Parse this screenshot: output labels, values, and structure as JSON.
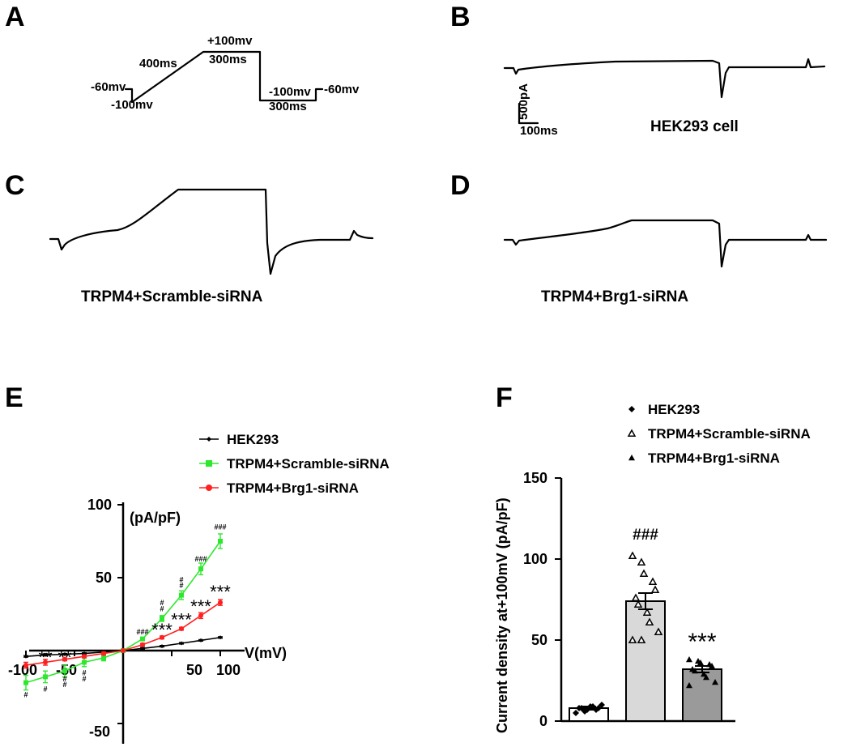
{
  "panels": {
    "A": {
      "letter": "A",
      "labels": [
        "-60mv",
        "-100mv",
        "400ms",
        "+100mv",
        "300ms",
        "-100mv",
        "300ms",
        "-60mv"
      ]
    },
    "B": {
      "letter": "B",
      "title": "HEK293 cell",
      "scale_y": "500pA",
      "scale_x": "100ms"
    },
    "C": {
      "letter": "C",
      "title": "TRPM4+Scramble-siRNA"
    },
    "D": {
      "letter": "D",
      "title": "TRPM4+Brg1-siRNA"
    },
    "E": {
      "letter": "E"
    },
    "F": {
      "letter": "F"
    }
  },
  "colors": {
    "hek293": "#000000",
    "scramble": "#2ee82e",
    "brg1": "#ff2020",
    "bar_hek": "#ffffff",
    "bar_scramble": "#d9d9d9",
    "bar_brg1": "#9a9a9a"
  },
  "chart_data": [
    {
      "panel": "E",
      "type": "line",
      "title": "",
      "xlabel": "V(mV)",
      "ylabel": "(pA/pF)",
      "xlim": [
        -100,
        100
      ],
      "ylim": [
        -50,
        100
      ],
      "x_ticks": [
        "-100",
        "-50",
        "50",
        "100"
      ],
      "y_ticks": [
        "-50",
        "50",
        "100"
      ],
      "legend_position": "top-right",
      "x": [
        -100,
        -80,
        -60,
        -40,
        -20,
        0,
        20,
        40,
        60,
        80,
        100
      ],
      "series": [
        {
          "name": "HEK293",
          "marker": "diamond",
          "values": [
            -4,
            -3,
            -2.5,
            -2,
            -1,
            0,
            1.5,
            3,
            5,
            7,
            9
          ],
          "errors": [
            0.5,
            0.5,
            0.5,
            0.5,
            0.5,
            0,
            0.5,
            0.5,
            0.5,
            0.5,
            0.5
          ]
        },
        {
          "name": "TRPM4+Scramble-siRNA",
          "marker": "square",
          "values": [
            -22,
            -18,
            -14,
            -8,
            -5,
            0,
            8,
            22,
            38,
            56,
            75
          ],
          "errors": [
            5,
            4,
            4,
            3,
            2,
            0,
            1,
            2,
            3,
            4,
            5
          ]
        },
        {
          "name": "TRPM4+Brg1-siRNA",
          "marker": "circle",
          "values": [
            -10,
            -8,
            -6,
            -4,
            -2,
            0,
            4,
            9,
            15,
            24,
            33
          ],
          "errors": [
            2,
            2,
            1,
            1,
            1,
            0,
            1,
            1,
            1,
            2,
            2
          ]
        }
      ],
      "annotations": [
        {
          "text": "#",
          "x": -100,
          "y": -32
        },
        {
          "text": "#",
          "x": -80,
          "y": -28
        },
        {
          "text": "#",
          "x": -60,
          "y": -25
        },
        {
          "text": "#",
          "x": -60,
          "y": -21
        },
        {
          "text": "#",
          "x": -40,
          "y": -21
        },
        {
          "text": "#",
          "x": -40,
          "y": -17
        },
        {
          "text": "**",
          "x": -80,
          "y": -9
        },
        {
          "text": "**",
          "x": -60,
          "y": -9
        },
        {
          "text": "###",
          "x": 20,
          "y": 11
        },
        {
          "text": "#",
          "x": 40,
          "y": 27
        },
        {
          "text": "#",
          "x": 40,
          "y": 31
        },
        {
          "text": "#",
          "x": 60,
          "y": 43
        },
        {
          "text": "#",
          "x": 60,
          "y": 47
        },
        {
          "text": "###",
          "x": 80,
          "y": 61
        },
        {
          "text": "###",
          "x": 100,
          "y": 83
        },
        {
          "text": "***",
          "x": 40,
          "y": 10
        },
        {
          "text": "***",
          "x": 60,
          "y": 17
        },
        {
          "text": "***",
          "x": 80,
          "y": 26
        },
        {
          "text": "***",
          "x": 100,
          "y": 36
        }
      ]
    },
    {
      "panel": "F",
      "type": "bar",
      "title": "",
      "xlabel": "",
      "ylabel": "Current density at+100mV (pA/pF)",
      "ylim": [
        0,
        150
      ],
      "y_ticks": [
        "0",
        "50",
        "100",
        "150"
      ],
      "legend_position": "top",
      "categories": [
        "HEK293",
        "TRPM4+Scramble-siRNA",
        "TRPM4+Brg1-siRNA"
      ],
      "series": [
        {
          "name": "HEK293",
          "marker": "diamond",
          "value": 8,
          "error": 1,
          "points": [
            5,
            6,
            7,
            7,
            8,
            8,
            8,
            9,
            9,
            10
          ]
        },
        {
          "name": "TRPM4+Scramble-siRNA",
          "marker": "open-triangle",
          "value": 74,
          "error": 5,
          "points": [
            102,
            98,
            91,
            86,
            81,
            76,
            72,
            67,
            61,
            55,
            50,
            50
          ]
        },
        {
          "name": "TRPM4+Brg1-siRNA",
          "marker": "triangle",
          "value": 32,
          "error": 2,
          "points": [
            38,
            37,
            36,
            35,
            34,
            32,
            31,
            29,
            27,
            24,
            22
          ]
        }
      ],
      "annotations": [
        {
          "text": "###",
          "category": 1,
          "y": 112
        },
        {
          "text": "***",
          "category": 2,
          "y": 44
        }
      ]
    }
  ]
}
